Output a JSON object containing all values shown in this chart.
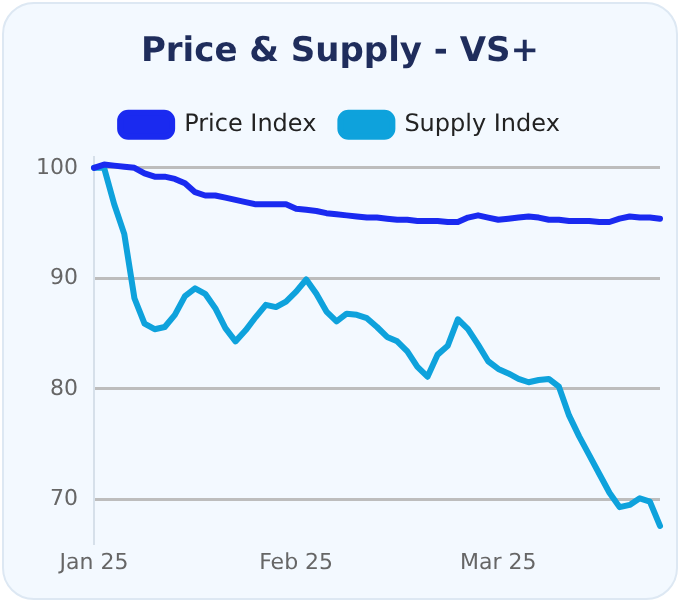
{
  "chart_data": {
    "type": "line",
    "title": "Price & Supply - VS+",
    "categories": [
      "Jan 25",
      null,
      null,
      null,
      null,
      null,
      null,
      null,
      null,
      null,
      null,
      null,
      null,
      null,
      null,
      null,
      null,
      null,
      null,
      null,
      "Feb 25",
      null,
      null,
      null,
      null,
      null,
      null,
      null,
      null,
      null,
      null,
      null,
      null,
      null,
      null,
      null,
      null,
      null,
      null,
      null,
      "Mar 25",
      null,
      null,
      null,
      null,
      null,
      null,
      null,
      null,
      null,
      null,
      null,
      null,
      null,
      null,
      null,
      null
    ],
    "ylim": [
      66,
      101
    ],
    "yticks": [
      70,
      80,
      90,
      100
    ],
    "grid": "y",
    "legend": "top",
    "marker": "none",
    "line_style": "solid",
    "series": [
      {
        "name": "Price Index",
        "color": "#1a2af0",
        "values": [
          100,
          100.3,
          100.2,
          100.1,
          100,
          99.5,
          99.2,
          99.2,
          99,
          98.6,
          97.8,
          97.5,
          97.5,
          97.3,
          97.1,
          96.9,
          96.7,
          96.7,
          96.7,
          96.7,
          96.3,
          96.2,
          96.1,
          95.9,
          95.8,
          95.7,
          95.6,
          95.5,
          95.5,
          95.4,
          95.3,
          95.3,
          95.2,
          95.2,
          95.2,
          95.1,
          95.1,
          95.5,
          95.7,
          95.5,
          95.3,
          95.4,
          95.5,
          95.6,
          95.5,
          95.3,
          95.3,
          95.2,
          95.2,
          95.2,
          95.1,
          95.1,
          95.4,
          95.6,
          95.5,
          95.5,
          95.4
        ]
      },
      {
        "name": "Supply Index",
        "color": "#0ea2dc",
        "values": [
          100,
          100,
          96.7,
          94,
          88.2,
          85.9,
          85.4,
          85.6,
          86.7,
          88.4,
          89.1,
          88.6,
          87.3,
          85.5,
          84.3,
          85.3,
          86.5,
          87.6,
          87.4,
          87.9,
          88.8,
          89.9,
          88.6,
          87,
          86.1,
          86.8,
          86.7,
          86.4,
          85.6,
          84.7,
          84.3,
          83.4,
          82,
          81.1,
          83.1,
          83.9,
          86.3,
          85.4,
          84,
          82.5,
          81.8,
          81.4,
          80.9,
          80.6,
          80.8,
          80.9,
          80.2,
          77.6,
          75.7,
          74,
          72.3,
          70.6,
          69.3,
          69.5,
          70.1,
          69.8,
          67.6
        ]
      }
    ]
  }
}
